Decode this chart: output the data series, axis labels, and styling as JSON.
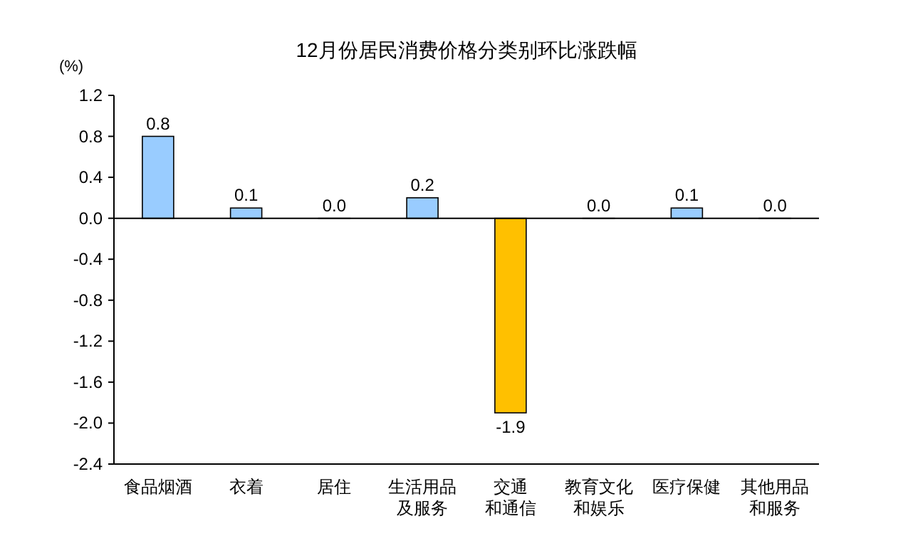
{
  "chart_data": {
    "type": "bar",
    "title": "12月份居民消费价格分类别环比涨跌幅",
    "ylabel": "(%)",
    "categories": [
      "食品烟酒",
      "衣着",
      "居住",
      "生活用品及服务",
      "交通和通信",
      "教育文化和娱乐",
      "医疗保健",
      "其他用品和服务"
    ],
    "values": [
      0.8,
      0.1,
      0,
      0.2,
      -1.9,
      0,
      0.1,
      0
    ],
    "colors": [
      "#99ccff",
      "#99ccff",
      "#99ccff",
      "#99ccff",
      "#ffc000",
      "#99ccff",
      "#99ccff",
      "#99ccff"
    ],
    "value_labels": [
      "0.8",
      "0.1",
      "0.0",
      "0.2",
      "-1.9",
      "0.0",
      "0.1",
      "0.0"
    ],
    "ylim": [
      -2.4,
      1.2
    ],
    "yticks": [
      1.2,
      0.8,
      0.4,
      {
        "value": 0,
        "label": "0.0"
      },
      -0.4,
      -0.8,
      -1.2,
      -1.6,
      {
        "value": -2,
        "label": "-2.0"
      },
      -2.4
    ],
    "tick_labels": true
  }
}
